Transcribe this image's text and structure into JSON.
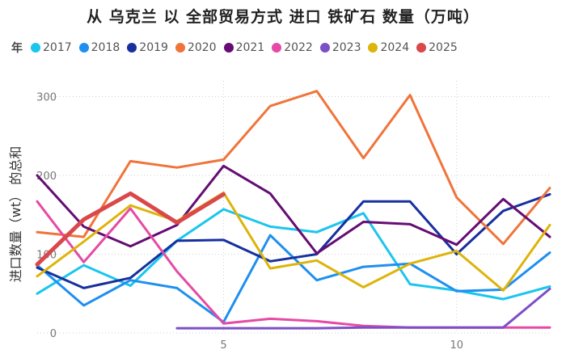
{
  "chart_data": {
    "type": "line",
    "title": "从 乌克兰 以 全部贸易方式 进口 铁矿石 数量（万吨）",
    "ylabel": "进口数量（wt） 的总和",
    "xlabel": "",
    "legend_title": "年",
    "legend_position": "top-left",
    "grid": "dotted",
    "ylim": [
      0,
      320
    ],
    "xlim": [
      1,
      12
    ],
    "x_ticks": [
      5,
      10
    ],
    "y_ticks": [
      0,
      100,
      200,
      300
    ],
    "series": [
      {
        "name": "2017",
        "color": "#1BC5EE",
        "x": [
          1,
          2,
          3,
          4,
          5,
          6,
          7,
          8,
          9,
          10,
          11,
          12
        ],
        "values": [
          50,
          86,
          60,
          117,
          157,
          135,
          128,
          152,
          62,
          54,
          43,
          59
        ]
      },
      {
        "name": "2018",
        "color": "#1E8FEF",
        "x": [
          1,
          2,
          3,
          4,
          5,
          6,
          7,
          8,
          9,
          10,
          11,
          12
        ],
        "values": [
          86,
          35,
          67,
          57,
          14,
          124,
          67,
          84,
          88,
          53,
          55,
          102
        ]
      },
      {
        "name": "2019",
        "color": "#17309E",
        "x": [
          1,
          2,
          3,
          4,
          5,
          6,
          7,
          8,
          9,
          10,
          11,
          12
        ],
        "values": [
          83,
          57,
          70,
          117,
          118,
          91,
          100,
          167,
          167,
          100,
          155,
          176
        ]
      },
      {
        "name": "2020",
        "color": "#F0743A",
        "x": [
          1,
          2,
          3,
          4,
          5,
          6,
          7,
          8,
          9,
          10,
          11,
          12
        ],
        "values": [
          128,
          122,
          218,
          210,
          220,
          288,
          307,
          222,
          302,
          172,
          113,
          184
        ]
      },
      {
        "name": "2021",
        "color": "#650D73",
        "x": [
          1,
          2,
          3,
          4,
          5,
          6,
          7,
          8,
          9,
          10,
          11,
          12
        ],
        "values": [
          200,
          135,
          110,
          137,
          212,
          177,
          101,
          141,
          138,
          112,
          170,
          122
        ]
      },
      {
        "name": "2022",
        "color": "#E64AA4",
        "x": [
          1,
          2,
          3,
          4,
          5,
          6,
          7,
          8,
          9,
          10,
          11,
          12
        ],
        "values": [
          167,
          90,
          158,
          78,
          12,
          18,
          15,
          9,
          7,
          7,
          7,
          7
        ]
      },
      {
        "name": "2023",
        "color": "#7C4FC7",
        "x": [
          4,
          5,
          6,
          7,
          8,
          9,
          10,
          11,
          12
        ],
        "values": [
          6,
          6,
          6,
          6,
          7,
          7,
          7,
          7,
          56
        ]
      },
      {
        "name": "2024",
        "color": "#DDB40A",
        "x": [
          1,
          2,
          3,
          4,
          5,
          6,
          7,
          8,
          9,
          10,
          11,
          12
        ],
        "values": [
          72,
          116,
          162,
          142,
          178,
          82,
          92,
          58,
          88,
          104,
          54,
          137
        ]
      },
      {
        "name": "2025",
        "color": "#D9484B",
        "x": [
          1,
          2,
          3,
          4,
          5
        ],
        "values": [
          87,
          144,
          177,
          140,
          176
        ]
      }
    ]
  }
}
